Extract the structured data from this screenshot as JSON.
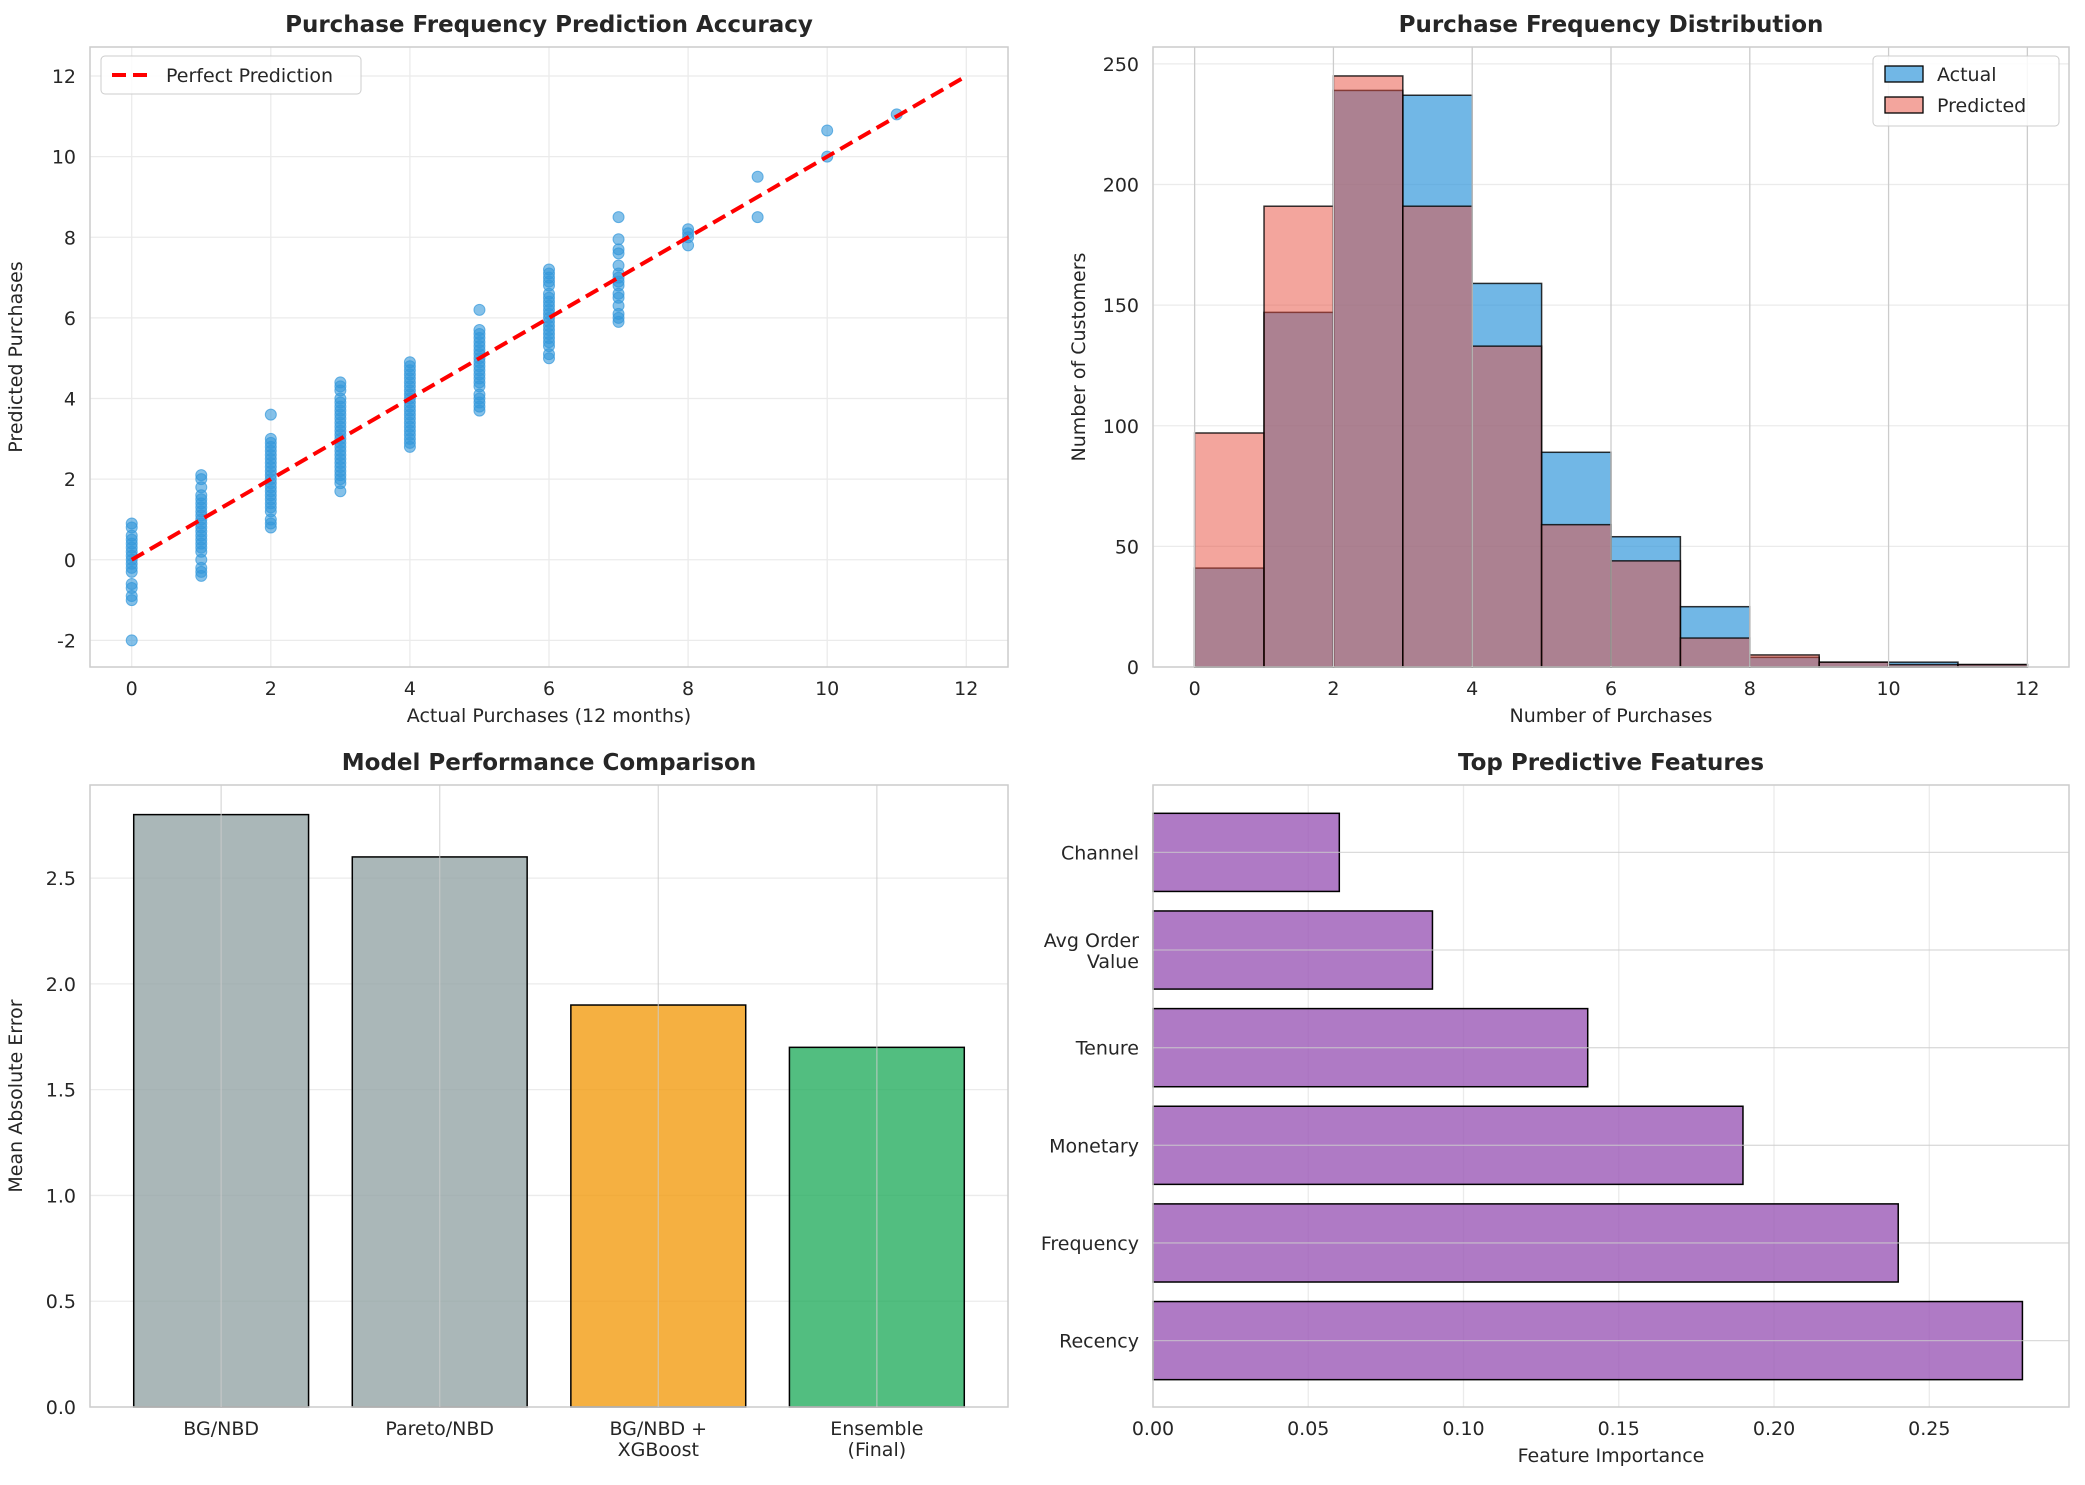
{
  "chart_data": [
    {
      "type": "scatter",
      "title": "Purchase Frequency Prediction Accuracy",
      "xlabel": "Actual Purchases (12 months)",
      "ylabel": "Predicted Purchases",
      "xlim": [
        -0.6,
        12.6
      ],
      "ylim": [
        -2.66,
        12.72
      ],
      "xticks": [
        0,
        2,
        4,
        6,
        8,
        10,
        12
      ],
      "yticks": [
        -2,
        0,
        2,
        4,
        6,
        8,
        10,
        12
      ],
      "grid": true,
      "legend": {
        "position": "top-left",
        "entries": [
          "Perfect Prediction"
        ]
      },
      "colors": {
        "points": "#3498db",
        "reference_line": "#ff0000"
      },
      "reference_line": {
        "name": "Perfect Prediction",
        "x": [
          0,
          12
        ],
        "y": [
          0,
          12
        ],
        "style": "dashed"
      },
      "points": [
        {
          "x": 0,
          "y": [
            0.9,
            0.8,
            0.6,
            0.5,
            0.4,
            0.3,
            0.2,
            0.1,
            0,
            -0.1,
            -0.2,
            -0.3,
            -0.6,
            -0.7,
            -0.9,
            -1.0,
            -2.0
          ]
        },
        {
          "x": 1,
          "y": [
            2.1,
            2.0,
            1.8,
            1.6,
            1.5,
            1.4,
            1.3,
            1.2,
            1.1,
            1.0,
            0.9,
            0.8,
            0.7,
            0.6,
            0.5,
            0.4,
            0.3,
            0.2,
            0,
            -0.2,
            -0.3,
            -0.4
          ]
        },
        {
          "x": 2,
          "y": [
            3.6,
            3.0,
            2.9,
            2.8,
            2.7,
            2.6,
            2.5,
            2.4,
            2.3,
            2.2,
            2.1,
            2.0,
            1.9,
            1.8,
            1.7,
            1.6,
            1.5,
            1.4,
            1.3,
            1.2,
            1.0,
            0.9,
            0.8
          ]
        },
        {
          "x": 3,
          "y": [
            4.4,
            4.3,
            4.2,
            4.0,
            3.9,
            3.8,
            3.7,
            3.6,
            3.5,
            3.4,
            3.3,
            3.2,
            3.1,
            3.0,
            2.9,
            2.8,
            2.7,
            2.6,
            2.5,
            2.4,
            2.3,
            2.2,
            2.1,
            2.0,
            1.9,
            1.7
          ]
        },
        {
          "x": 4,
          "y": [
            4.9,
            4.8,
            4.7,
            4.6,
            4.5,
            4.4,
            4.3,
            4.2,
            4.1,
            4.0,
            3.9,
            3.8,
            3.7,
            3.6,
            3.5,
            3.4,
            3.3,
            3.2,
            3.1,
            3.0,
            2.9,
            2.8
          ]
        },
        {
          "x": 5,
          "y": [
            6.2,
            5.7,
            5.6,
            5.5,
            5.4,
            5.3,
            5.2,
            5.1,
            5.0,
            4.9,
            4.8,
            4.7,
            4.6,
            4.5,
            4.4,
            4.3,
            4.1,
            4.0,
            3.9,
            3.8,
            3.7
          ]
        },
        {
          "x": 6,
          "y": [
            7.2,
            7.1,
            7.0,
            6.9,
            6.8,
            6.6,
            6.5,
            6.4,
            6.3,
            6.2,
            6.1,
            6.0,
            5.9,
            5.8,
            5.7,
            5.6,
            5.5,
            5.4,
            5.3,
            5.1,
            5.0
          ]
        },
        {
          "x": 7,
          "y": [
            8.5,
            7.95,
            7.7,
            7.6,
            7.3,
            7.1,
            7.0,
            6.9,
            6.8,
            6.6,
            6.5,
            6.3,
            6.1,
            6.0,
            5.9
          ]
        },
        {
          "x": 8,
          "y": [
            8.2,
            8.1,
            8.0,
            7.8
          ]
        },
        {
          "x": 9,
          "y": [
            9.5,
            8.5
          ]
        },
        {
          "x": 10,
          "y": [
            10.65,
            10.0
          ]
        },
        {
          "x": 11,
          "y": [
            11.05
          ]
        }
      ]
    },
    {
      "type": "bar",
      "subtype": "histogram",
      "title": "Purchase Frequency Distribution",
      "xlabel": "Number of Purchases",
      "ylabel": "Number of Customers",
      "xlim": [
        -0.6,
        12.6
      ],
      "ylim": [
        0,
        257
      ],
      "xticks": [
        0,
        2,
        4,
        6,
        8,
        10,
        12
      ],
      "yticks": [
        0,
        50,
        100,
        150,
        200,
        250
      ],
      "grid": true,
      "legend": {
        "position": "top-right"
      },
      "bin_edges": [
        0,
        1,
        2,
        3,
        4,
        5,
        6,
        7,
        8,
        9,
        10,
        11,
        12
      ],
      "series": [
        {
          "name": "Actual",
          "color": "#3498db",
          "values": [
            41,
            147,
            239,
            237,
            159,
            89,
            54,
            25,
            4,
            2,
            2,
            1
          ]
        },
        {
          "name": "Predicted",
          "color": "#e74c3c",
          "values": [
            97,
            191,
            245,
            191,
            133,
            59,
            44,
            12,
            5,
            2,
            1,
            1
          ]
        }
      ]
    },
    {
      "type": "bar",
      "title": "Model Performance Comparison",
      "xlabel": "",
      "ylabel": "Mean Absolute Error",
      "ylim": [
        0,
        2.94
      ],
      "yticks": [
        0.0,
        0.5,
        1.0,
        1.5,
        2.0,
        2.5
      ],
      "ytick_labels": [
        "0.0",
        "0.5",
        "1.0",
        "1.5",
        "2.0",
        "2.5"
      ],
      "grid": true,
      "categories": [
        "BG/NBD",
        "Pareto/NBD",
        "BG/NBD +\nXGBoost",
        "Ensemble\n(Final)"
      ],
      "values": [
        2.8,
        2.6,
        1.9,
        1.7
      ],
      "colors": [
        "#95a5a6",
        "#95a5a6",
        "#f39c12",
        "#27ae60"
      ]
    },
    {
      "type": "bar",
      "orientation": "horizontal",
      "title": "Top Predictive Features",
      "xlabel": "Feature Importance",
      "ylabel": "",
      "xlim": [
        0,
        0.295
      ],
      "xticks": [
        0.0,
        0.05,
        0.1,
        0.15,
        0.2,
        0.25
      ],
      "xtick_labels": [
        "0.00",
        "0.05",
        "0.10",
        "0.15",
        "0.20",
        "0.25"
      ],
      "grid": true,
      "categories": [
        "Recency",
        "Frequency",
        "Monetary",
        "Tenure",
        "Avg Order\nValue",
        "Channel"
      ],
      "values": [
        0.28,
        0.24,
        0.19,
        0.14,
        0.09,
        0.06
      ],
      "color": "#9b59b6"
    }
  ]
}
